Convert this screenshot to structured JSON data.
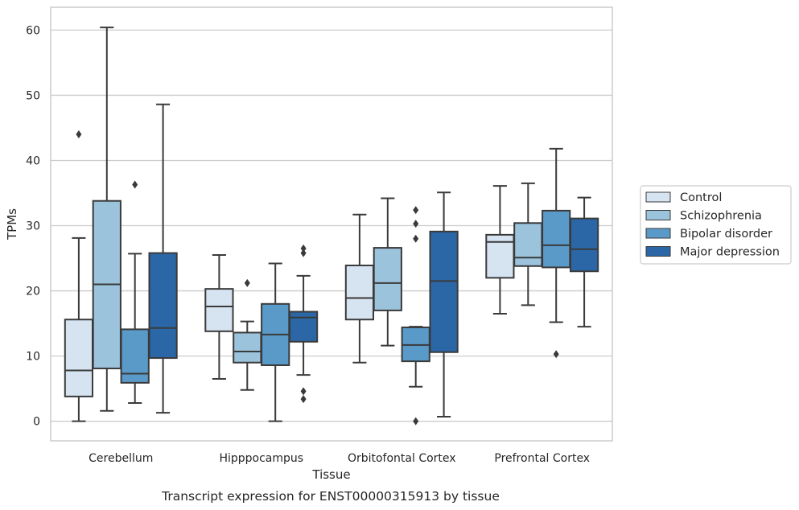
{
  "chart_data": {
    "type": "boxplot",
    "title": "",
    "caption": "Transcript expression for ENST00000315913 by tissue",
    "xlabel": "Tissue",
    "ylabel": "TPMs",
    "ylim": [
      -3,
      63.5
    ],
    "yticks": [
      0,
      10,
      20,
      30,
      40,
      50,
      60
    ],
    "grid": "horizontal",
    "legend_position": "right",
    "categories": [
      "Cerebellum",
      "Hipppocampus",
      "Orbitofontal Cortex",
      "Prefrontal Cortex"
    ],
    "series": [
      {
        "name": "Control",
        "color": "#d6e4f2",
        "boxes": [
          {
            "whislo": 0,
            "q1": 3.8,
            "med": 7.8,
            "q3": 15.6,
            "whishi": 28.1,
            "fliers": [
              44.0
            ]
          },
          {
            "whislo": 6.5,
            "q1": 13.8,
            "med": 17.6,
            "q3": 20.3,
            "whishi": 25.5,
            "fliers": []
          },
          {
            "whislo": 9.0,
            "q1": 15.6,
            "med": 18.9,
            "q3": 23.9,
            "whishi": 31.7,
            "fliers": []
          },
          {
            "whislo": 16.5,
            "q1": 22.0,
            "med": 27.5,
            "q3": 28.6,
            "whishi": 36.1,
            "fliers": []
          }
        ]
      },
      {
        "name": "Schizophrenia",
        "color": "#9cc3dc",
        "boxes": [
          {
            "whislo": 1.6,
            "q1": 8.1,
            "med": 21.0,
            "q3": 33.8,
            "whishi": 60.4,
            "fliers": []
          },
          {
            "whislo": 4.8,
            "q1": 9.0,
            "med": 10.7,
            "q3": 13.6,
            "whishi": 15.3,
            "fliers": [
              21.2
            ]
          },
          {
            "whislo": 11.6,
            "q1": 17.0,
            "med": 21.2,
            "q3": 26.6,
            "whishi": 34.2,
            "fliers": []
          },
          {
            "whislo": 17.8,
            "q1": 23.8,
            "med": 25.1,
            "q3": 30.4,
            "whishi": 36.5,
            "fliers": []
          }
        ]
      },
      {
        "name": "Bipolar disorder",
        "color": "#5a9ac8",
        "boxes": [
          {
            "whislo": 2.8,
            "q1": 5.9,
            "med": 7.3,
            "q3": 14.1,
            "whishi": 25.7,
            "fliers": [
              36.3
            ]
          },
          {
            "whislo": 0,
            "q1": 8.6,
            "med": 13.3,
            "q3": 18.0,
            "whishi": 24.2,
            "fliers": []
          },
          {
            "whislo": 5.3,
            "q1": 9.2,
            "med": 11.7,
            "q3": 14.4,
            "whishi": 14.5,
            "fliers": [
              0.0,
              28.0,
              30.3,
              32.4
            ]
          },
          {
            "whislo": 15.2,
            "q1": 23.6,
            "med": 27.0,
            "q3": 32.3,
            "whishi": 41.8,
            "fliers": [
              10.3
            ]
          }
        ]
      },
      {
        "name": "Major depression",
        "color": "#2b67a6",
        "boxes": [
          {
            "whislo": 1.3,
            "q1": 9.7,
            "med": 14.3,
            "q3": 25.8,
            "whishi": 48.6,
            "fliers": []
          },
          {
            "whislo": 7.1,
            "q1": 12.2,
            "med": 15.9,
            "q3": 16.8,
            "whishi": 22.3,
            "fliers": [
              3.4,
              4.6,
              25.8,
              26.5
            ]
          },
          {
            "whislo": 0.7,
            "q1": 10.6,
            "med": 21.5,
            "q3": 29.1,
            "whishi": 35.1,
            "fliers": []
          },
          {
            "whislo": 14.5,
            "q1": 23.0,
            "med": 26.4,
            "q3": 31.1,
            "whishi": 34.3,
            "fliers": []
          }
        ]
      }
    ]
  }
}
